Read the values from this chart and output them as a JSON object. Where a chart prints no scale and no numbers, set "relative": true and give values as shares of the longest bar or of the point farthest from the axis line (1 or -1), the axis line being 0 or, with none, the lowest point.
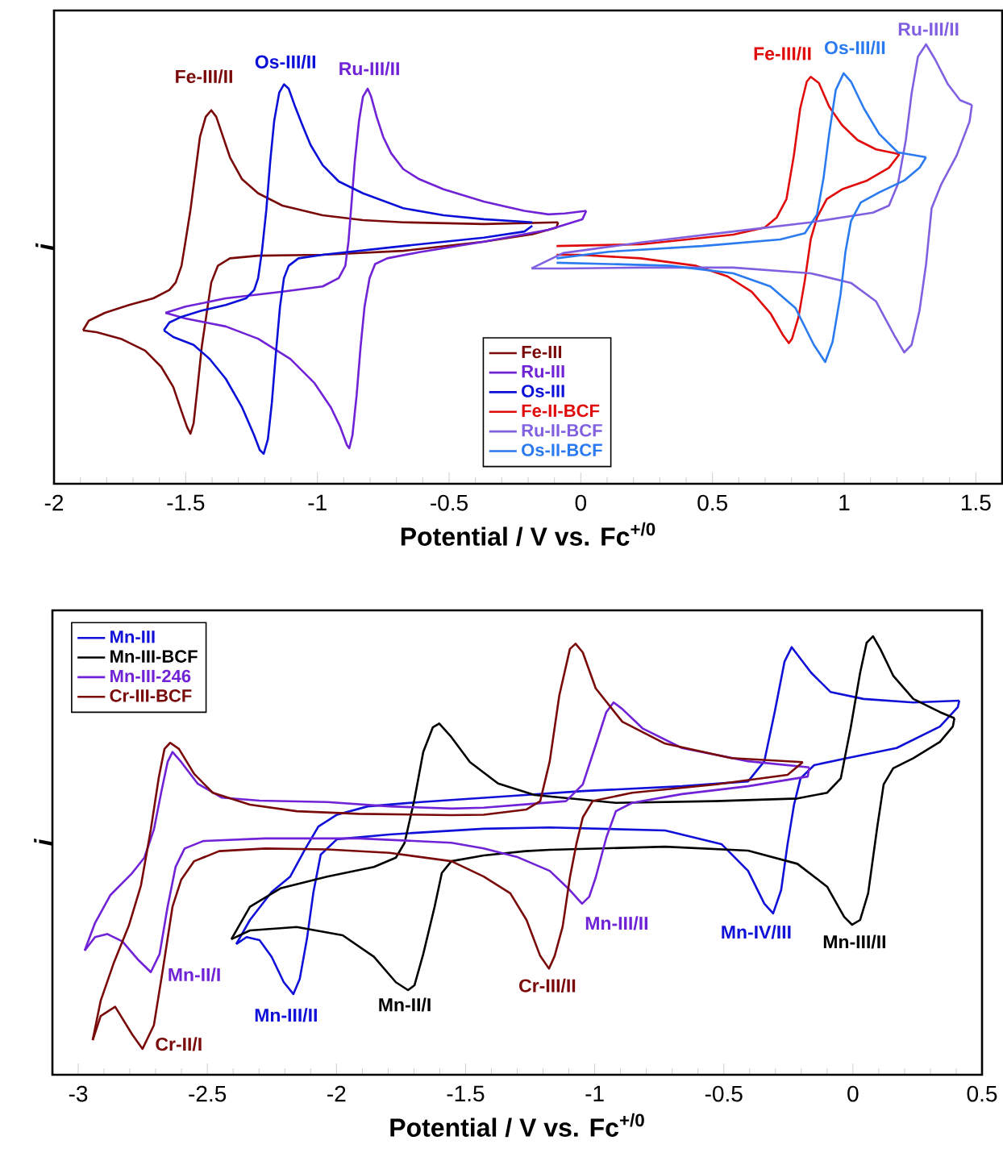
{
  "chart_data": [
    {
      "type": "line",
      "relative": true,
      "xlabel": "Potential / V vs. Fc$^{+/0}$",
      "ylabel": "i",
      "xlim": [
        -2,
        1.6
      ],
      "xticks": [
        -2,
        -1.5,
        -1,
        -0.5,
        0,
        0.5,
        1,
        1.5
      ],
      "legend": "bottom",
      "series": [
        {
          "name": "Fe-III",
          "color": "#7a0a0a",
          "x": [
            -0.086,
            -0.368,
            -0.674,
            -0.827,
            -0.98,
            -1.133,
            -1.225,
            -1.286,
            -1.332,
            -1.363,
            -1.384,
            -1.403,
            -1.424,
            -1.446,
            -1.464,
            -1.482,
            -1.501,
            -1.516,
            -1.538,
            -1.562,
            -1.623,
            -1.715,
            -1.807,
            -1.868,
            -1.89
          ],
          "values": [
            0.595,
            0.591,
            0.595,
            0.6,
            0.611,
            0.633,
            0.661,
            0.693,
            0.743,
            0.798,
            0.835,
            0.85,
            0.835,
            0.789,
            0.706,
            0.623,
            0.551,
            0.496,
            0.458,
            0.441,
            0.422,
            0.407,
            0.389,
            0.371,
            0.349
          ]
        },
        {
          "color": "#7a0a0a",
          "x": [
            -1.89,
            -1.838,
            -1.746,
            -1.654,
            -1.593,
            -1.547,
            -1.516,
            -1.495,
            -1.482,
            -1.47,
            -1.455,
            -1.439,
            -1.421,
            -1.403,
            -1.378,
            -1.332,
            -1.225,
            -0.98,
            -0.674,
            -0.368,
            -0.184,
            -0.092,
            -0.086
          ],
          "values": [
            0.349,
            0.345,
            0.33,
            0.303,
            0.266,
            0.22,
            0.165,
            0.129,
            0.114,
            0.138,
            0.22,
            0.312,
            0.386,
            0.458,
            0.496,
            0.513,
            0.519,
            0.521,
            0.53,
            0.551,
            0.568,
            0.583,
            0.595
          ]
        },
        {
          "name": "Ru-III",
          "color": "#7022d6",
          "x": [
            0.021,
            -0.061,
            -0.123,
            -0.214,
            -0.368,
            -0.521,
            -0.613,
            -0.674,
            -0.72,
            -0.75,
            -0.775,
            -0.796,
            -0.809,
            -0.827,
            -0.842,
            -0.858,
            -0.87,
            -0.882,
            -0.894,
            -0.919,
            -0.98,
            -1.133,
            -1.348,
            -1.501,
            -1.577
          ],
          "values": [
            0.621,
            0.615,
            0.613,
            0.621,
            0.642,
            0.67,
            0.693,
            0.716,
            0.752,
            0.789,
            0.835,
            0.881,
            0.899,
            0.881,
            0.826,
            0.734,
            0.642,
            0.551,
            0.496,
            0.468,
            0.449,
            0.437,
            0.422,
            0.403,
            0.389
          ]
        },
        {
          "color": "#7022d6",
          "x": [
            -1.577,
            -1.501,
            -1.348,
            -1.225,
            -1.103,
            -1.011,
            -0.949,
            -0.913,
            -0.888,
            -0.879,
            -0.867,
            -0.851,
            -0.836,
            -0.821,
            -0.802,
            -0.781,
            -0.735,
            -0.613,
            -0.368,
            -0.123,
            0.006,
            0.021
          ],
          "values": [
            0.389,
            0.376,
            0.358,
            0.33,
            0.284,
            0.229,
            0.174,
            0.129,
            0.088,
            0.081,
            0.11,
            0.202,
            0.312,
            0.403,
            0.468,
            0.5,
            0.513,
            0.527,
            0.551,
            0.578,
            0.602,
            0.621
          ]
        },
        {
          "name": "Os-III",
          "color": "#0a10d8",
          "x": [
            -0.184,
            -0.368,
            -0.521,
            -0.674,
            -0.827,
            -0.919,
            -0.98,
            -1.026,
            -1.057,
            -1.087,
            -1.109,
            -1.127,
            -1.145,
            -1.164,
            -1.179,
            -1.194,
            -1.21,
            -1.225,
            -1.24,
            -1.271,
            -1.348,
            -1.44,
            -1.516,
            -1.562,
            -1.583
          ],
          "values": [
            0.595,
            0.602,
            0.611,
            0.627,
            0.661,
            0.688,
            0.725,
            0.771,
            0.816,
            0.862,
            0.899,
            0.909,
            0.89,
            0.826,
            0.734,
            0.623,
            0.532,
            0.468,
            0.441,
            0.422,
            0.407,
            0.394,
            0.38,
            0.367,
            0.349
          ]
        },
        {
          "color": "#0a10d8",
          "x": [
            -1.583,
            -1.547,
            -1.47,
            -1.409,
            -1.348,
            -1.286,
            -1.24,
            -1.219,
            -1.204,
            -1.188,
            -1.173,
            -1.158,
            -1.142,
            -1.127,
            -1.109,
            -1.072,
            -0.98,
            -0.674,
            -0.368,
            -0.214,
            -0.184
          ],
          "values": [
            0.349,
            0.334,
            0.316,
            0.284,
            0.239,
            0.174,
            0.11,
            0.077,
            0.068,
            0.101,
            0.184,
            0.294,
            0.403,
            0.468,
            0.496,
            0.513,
            0.521,
            0.541,
            0.56,
            0.574,
            0.587
          ]
        },
        {
          "name": "Fe-II-BCF",
          "color": "#e00b0b",
          "x": [
            -0.092,
            0.227,
            0.579,
            0.698,
            0.744,
            0.781,
            0.809,
            0.833,
            0.858,
            0.873,
            0.904,
            0.943,
            0.992,
            1.051,
            1.121,
            1.21
          ],
          "values": [
            0.541,
            0.545,
            0.567,
            0.583,
            0.606,
            0.648,
            0.747,
            0.854,
            0.915,
            0.926,
            0.912,
            0.858,
            0.816,
            0.782,
            0.761,
            0.75
          ]
        },
        {
          "color": "#e00b0b",
          "x": [
            1.21,
            1.17,
            1.087,
            0.992,
            0.934,
            0.897,
            0.873,
            0.851,
            0.827,
            0.802,
            0.79,
            0.769,
            0.72,
            0.649,
            0.557,
            0.438,
            0.227,
            -0.009,
            -0.092
          ],
          "values": [
            0.75,
            0.719,
            0.69,
            0.67,
            0.648,
            0.606,
            0.556,
            0.464,
            0.38,
            0.33,
            0.32,
            0.337,
            0.388,
            0.437,
            0.472,
            0.496,
            0.513,
            0.521,
            0.521
          ]
        },
        {
          "name": "Ru-II-BCF",
          "color": "#8060e0",
          "x": [
            -0.187,
            -0.067,
            0.227,
            0.579,
            0.873,
            1.109,
            1.17,
            1.204,
            1.234,
            1.256,
            1.28,
            1.311,
            1.345,
            1.394,
            1.44,
            1.485
          ],
          "values": [
            0.49,
            0.525,
            0.549,
            0.574,
            0.595,
            0.617,
            0.633,
            0.682,
            0.782,
            0.888,
            0.972,
            1.0,
            0.966,
            0.909,
            0.873,
            0.862
          ]
        },
        {
          "color": "#8060e0",
          "x": [
            1.485,
            1.476,
            1.427,
            1.369,
            1.332,
            1.311,
            1.286,
            1.256,
            1.228,
            1.191,
            1.121,
            1.026,
            0.873,
            0.579,
            0.227,
            -0.067,
            -0.187
          ],
          "values": [
            0.862,
            0.824,
            0.747,
            0.682,
            0.627,
            0.5,
            0.394,
            0.316,
            0.299,
            0.337,
            0.415,
            0.457,
            0.479,
            0.492,
            0.492,
            0.49,
            0.49
          ]
        },
        {
          "name": "Os-II-BCF",
          "color": "#2a7af0",
          "x": [
            -0.092,
            0.107,
            0.462,
            0.757,
            0.851,
            0.897,
            0.922,
            0.943,
            0.968,
            0.998,
            1.026,
            1.075,
            1.133,
            1.204,
            1.311
          ],
          "values": [
            0.513,
            0.528,
            0.541,
            0.556,
            0.57,
            0.613,
            0.697,
            0.796,
            0.896,
            0.934,
            0.915,
            0.854,
            0.796,
            0.754,
            0.743
          ]
        },
        {
          "color": "#2a7af0",
          "x": [
            1.311,
            1.286,
            1.228,
            1.133,
            1.063,
            1.026,
            1.005,
            0.986,
            0.956,
            0.928,
            0.885,
            0.815,
            0.72,
            0.579,
            0.343,
            0.107,
            -0.092
          ],
          "values": [
            0.743,
            0.719,
            0.69,
            0.663,
            0.64,
            0.598,
            0.528,
            0.43,
            0.323,
            0.277,
            0.316,
            0.4,
            0.449,
            0.479,
            0.496,
            0.5,
            0.503
          ]
        }
      ],
      "annotations": [
        {
          "text": "Fe-III/II",
          "x": -1.403,
          "y": 0.85
        },
        {
          "text": "Os-III/II",
          "x": -1.127,
          "y": 0.909
        },
        {
          "text": "Ru-III/II",
          "x": -0.809,
          "y": 0.899
        },
        {
          "text": "Fe-III/II",
          "x": 0.873,
          "y": 0.926
        },
        {
          "text": "Os-III/II",
          "x": 0.998,
          "y": 0.934
        },
        {
          "text": "Ru-III/II",
          "x": 1.311,
          "y": 1.0
        }
      ]
    },
    {
      "type": "line",
      "relative": true,
      "xlabel": "Potential / V vs. Fc$^{+/0}$",
      "ylabel": "i",
      "xlim": [
        -3.1,
        0.5
      ],
      "xticks": [
        -3,
        -2.5,
        -2,
        -1.5,
        -1,
        -0.5,
        0,
        0.5
      ],
      "legend": "top left",
      "series": [
        {
          "name": "Mn-III",
          "color": "#1010d8",
          "x": [
            -2.388,
            -2.335,
            -2.251,
            -2.179,
            -2.12,
            -2.07,
            -1.998,
            -1.879,
            -1.673,
            -1.314,
            -1.046,
            -0.662,
            -0.406,
            -0.343,
            -0.303,
            -0.265,
            -0.237,
            -0.162,
            -0.087,
            0.041,
            0.234,
            0.412
          ],
          "values": [
            0.298,
            0.353,
            0.417,
            0.452,
            0.516,
            0.566,
            0.593,
            0.612,
            0.622,
            0.636,
            0.647,
            0.658,
            0.669,
            0.715,
            0.827,
            0.942,
            0.975,
            0.917,
            0.873,
            0.857,
            0.849,
            0.853
          ]
        },
        {
          "color": "#1010d8",
          "x": [
            0.412,
            0.406,
            0.337,
            0.169,
            -0.022,
            -0.15,
            -0.203,
            -0.228,
            -0.253,
            -0.278,
            -0.309,
            -0.343,
            -0.406,
            -0.509,
            -0.727,
            -1.174,
            -1.43,
            -1.795,
            -1.998,
            -2.061,
            -2.089,
            -2.114,
            -2.142,
            -2.167,
            -2.204,
            -2.251,
            -2.298,
            -2.348,
            -2.388
          ],
          "values": [
            0.853,
            0.838,
            0.794,
            0.745,
            0.722,
            0.706,
            0.676,
            0.616,
            0.526,
            0.421,
            0.368,
            0.39,
            0.465,
            0.526,
            0.557,
            0.564,
            0.561,
            0.548,
            0.537,
            0.502,
            0.417,
            0.311,
            0.219,
            0.184,
            0.211,
            0.269,
            0.307,
            0.314,
            0.298
          ]
        },
        {
          "name": "Mn-III-BCF",
          "color": "#000000",
          "x": [
            -2.407,
            -2.335,
            -2.217,
            -2.036,
            -1.855,
            -1.77,
            -1.736,
            -1.698,
            -1.664,
            -1.627,
            -1.602,
            -1.555,
            -1.483,
            -1.374,
            -1.233,
            -0.918,
            -0.534,
            -0.215,
            -0.1,
            -0.047,
            -0.009,
            0.028,
            0.053,
            0.078,
            0.106,
            0.156,
            0.234,
            0.337,
            0.393
          ],
          "values": [
            0.309,
            0.383,
            0.425,
            0.452,
            0.474,
            0.495,
            0.529,
            0.628,
            0.736,
            0.792,
            0.801,
            0.77,
            0.713,
            0.664,
            0.638,
            0.62,
            0.624,
            0.63,
            0.643,
            0.676,
            0.79,
            0.917,
            0.985,
            1.0,
            0.971,
            0.91,
            0.857,
            0.827,
            0.813
          ]
        },
        {
          "color": "#000000",
          "x": [
            0.393,
            0.387,
            0.337,
            0.234,
            0.156,
            0.119,
            0.094,
            0.059,
            0.028,
            -0.003,
            -0.034,
            -0.1,
            -0.215,
            -0.406,
            -0.727,
            -1.174,
            -1.268,
            -1.43,
            -1.555,
            -1.592,
            -1.62,
            -1.664,
            -1.698,
            -1.723,
            -1.77,
            -1.855,
            -1.976,
            -2.154,
            -2.335,
            -2.407
          ],
          "values": [
            0.813,
            0.794,
            0.759,
            0.722,
            0.699,
            0.662,
            0.564,
            0.414,
            0.353,
            0.342,
            0.36,
            0.429,
            0.481,
            0.511,
            0.52,
            0.513,
            0.51,
            0.5,
            0.487,
            0.46,
            0.383,
            0.275,
            0.204,
            0.193,
            0.211,
            0.269,
            0.318,
            0.337,
            0.329,
            0.309
          ]
        },
        {
          "name": "Mn-III-246",
          "color": "#7022d6",
          "x": [
            -2.975,
            -2.935,
            -2.875,
            -2.791,
            -2.744,
            -2.707,
            -2.679,
            -2.654,
            -2.635,
            -2.601,
            -2.538,
            -2.445,
            -2.298,
            -2.036,
            -1.795,
            -1.555,
            -1.43,
            -1.239,
            -1.111,
            -1.046,
            -0.996,
            -0.955,
            -0.927,
            -0.893,
            -0.815,
            -0.662,
            -0.406,
            -0.169
          ],
          "values": [
            0.283,
            0.346,
            0.41,
            0.46,
            0.495,
            0.559,
            0.643,
            0.713,
            0.736,
            0.713,
            0.664,
            0.632,
            0.625,
            0.622,
            0.612,
            0.607,
            0.609,
            0.618,
            0.624,
            0.662,
            0.752,
            0.827,
            0.849,
            0.834,
            0.79,
            0.745,
            0.715,
            0.701
          ]
        },
        {
          "color": "#7022d6",
          "x": [
            -0.169,
            -0.175,
            -0.406,
            -0.662,
            -0.855,
            -0.918,
            -0.955,
            -0.996,
            -1.021,
            -1.049,
            -1.096,
            -1.174,
            -1.302,
            -1.43,
            -1.555,
            -1.914,
            -2.276,
            -2.516,
            -2.588,
            -2.623,
            -2.654,
            -2.685,
            -2.719,
            -2.766,
            -2.829,
            -2.888,
            -2.935,
            -2.975
          ],
          "values": [
            0.701,
            0.68,
            0.658,
            0.64,
            0.62,
            0.601,
            0.541,
            0.45,
            0.406,
            0.39,
            0.421,
            0.465,
            0.497,
            0.516,
            0.529,
            0.539,
            0.539,
            0.533,
            0.516,
            0.474,
            0.383,
            0.275,
            0.234,
            0.261,
            0.304,
            0.321,
            0.314,
            0.283
          ]
        },
        {
          "name": "Cr-III-BCF",
          "color": "#7a0a0a",
          "x": [
            -2.944,
            -2.913,
            -2.863,
            -2.804,
            -2.757,
            -2.719,
            -2.688,
            -2.666,
            -2.644,
            -2.61,
            -2.551,
            -2.479,
            -2.335,
            -2.154,
            -1.914,
            -1.555,
            -1.43,
            -1.264,
            -1.211,
            -1.174,
            -1.137,
            -1.096,
            -1.074,
            -1.046,
            -0.996,
            -0.893,
            -0.727,
            -0.471,
            -0.194
          ],
          "values": [
            0.079,
            0.169,
            0.254,
            0.34,
            0.432,
            0.559,
            0.678,
            0.743,
            0.757,
            0.743,
            0.686,
            0.643,
            0.616,
            0.601,
            0.595,
            0.592,
            0.593,
            0.605,
            0.624,
            0.715,
            0.865,
            0.971,
            0.983,
            0.963,
            0.881,
            0.805,
            0.755,
            0.722,
            0.713
          ]
        },
        {
          "color": "#7a0a0a",
          "x": [
            -0.194,
            -0.253,
            -0.534,
            -0.855,
            -1.008,
            -1.046,
            -1.071,
            -1.096,
            -1.124,
            -1.155,
            -1.177,
            -1.211,
            -1.264,
            -1.327,
            -1.43,
            -1.555,
            -1.795,
            -2.036,
            -2.276,
            -2.454,
            -2.551,
            -2.601,
            -2.635,
            -2.672,
            -2.707,
            -2.751,
            -2.791,
            -2.857,
            -2.913,
            -2.944
          ],
          "values": [
            0.713,
            0.684,
            0.662,
            0.643,
            0.624,
            0.587,
            0.526,
            0.45,
            0.338,
            0.271,
            0.242,
            0.271,
            0.353,
            0.414,
            0.452,
            0.487,
            0.506,
            0.514,
            0.516,
            0.51,
            0.487,
            0.445,
            0.383,
            0.241,
            0.113,
            0.059,
            0.092,
            0.155,
            0.134,
            0.079
          ]
        }
      ],
      "annotations": [
        {
          "text": "Mn-II/I",
          "x": -2.719,
          "y": 0.234
        },
        {
          "text": "Cr-II/I",
          "x": -2.751,
          "y": 0.059
        },
        {
          "text": "Mn-III/II",
          "x": -2.167,
          "y": 0.184
        },
        {
          "text": "Mn-II/I",
          "x": -1.723,
          "y": 0.193
        },
        {
          "text": "Cr-III/II",
          "x": -1.177,
          "y": 0.242
        },
        {
          "text": "Mn-III/II",
          "x": -1.049,
          "y": 0.39
        },
        {
          "text": "Mn-IV/III",
          "x": -0.309,
          "y": 0.368
        },
        {
          "text": "Mn-III/II",
          "x": -0.003,
          "y": 0.342
        }
      ]
    }
  ]
}
